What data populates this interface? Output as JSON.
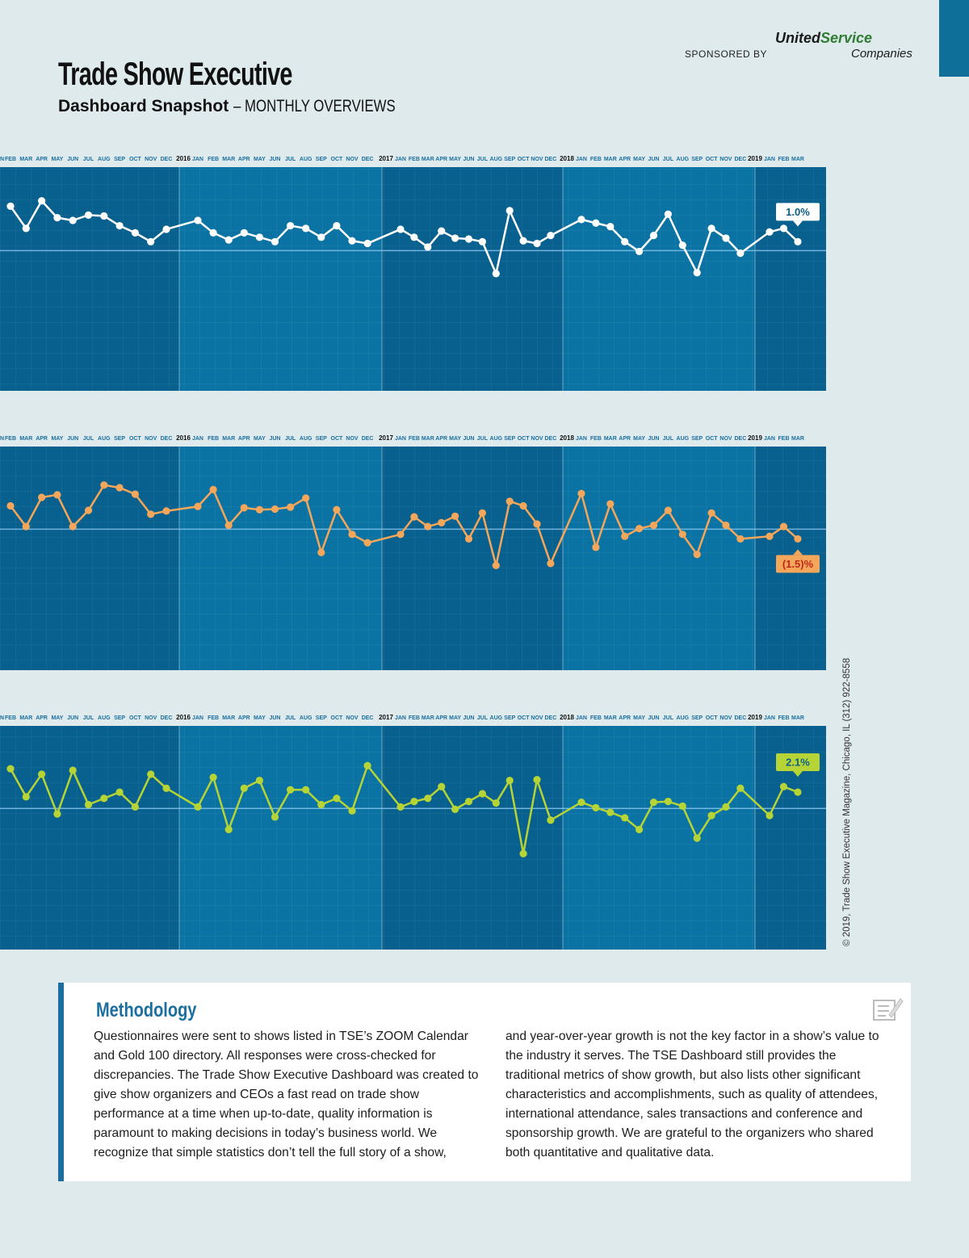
{
  "header": {
    "brand": "Trade Show Executive",
    "title": "Dashboard Snapshot",
    "subtitle": "– MONTHLY OVERVIEWS"
  },
  "sponsor": {
    "label": "SPONSORED BY",
    "name_1": "United",
    "name_2": "Service",
    "name_3": "Companies"
  },
  "chart_data": [
    {
      "type": "line",
      "first_label": "N",
      "year_labels": [
        "2016",
        "2017",
        "2018",
        "2019"
      ],
      "categories": [
        "FEB",
        "MAR",
        "APR",
        "MAY",
        "JUN",
        "JUL",
        "AUG",
        "SEP",
        "OCT",
        "NOV",
        "DEC",
        "JAN",
        "FEB",
        "MAR",
        "APR",
        "MAY",
        "JUN",
        "JUL",
        "AUG",
        "SEP",
        "OCT",
        "NOV",
        "DEC",
        "JAN",
        "FEB",
        "MAR",
        "APR",
        "MAY",
        "JUN",
        "JUL",
        "AUG",
        "SEP",
        "OCT",
        "NOV",
        "DEC",
        "JAN",
        "FEB",
        "MAR",
        "APR",
        "MAY",
        "JUN",
        "JUL",
        "AUG",
        "SEP",
        "OCT",
        "NOV",
        "DEC",
        "JAN",
        "FEB",
        "MAR"
      ],
      "color": "#ffffff",
      "ylim": [
        -15.8,
        9.4
      ],
      "values": [
        5.0,
        2.5,
        5.6,
        3.7,
        3.4,
        4.0,
        3.9,
        2.8,
        2.0,
        1.0,
        2.4,
        3.4,
        2.0,
        1.2,
        2.0,
        1.5,
        1.0,
        2.8,
        2.5,
        1.5,
        2.8,
        1.1,
        0.8,
        2.4,
        1.5,
        0.4,
        2.2,
        1.4,
        1.3,
        1.0,
        -2.6,
        4.5,
        1.1,
        0.8,
        1.7,
        3.5,
        3.1,
        2.7,
        1.0,
        -0.1,
        1.7,
        4.1,
        0.6,
        -2.5,
        2.5,
        1.4,
        -0.3,
        2.1,
        2.5,
        1.0
      ],
      "value_labels": [
        null,
        null,
        null,
        null,
        null,
        null,
        null,
        null,
        null,
        null,
        null,
        null,
        null,
        null,
        null,
        null,
        null,
        null,
        null,
        null,
        null,
        null,
        null,
        null,
        null,
        null,
        null,
        null,
        null,
        null,
        null,
        null,
        null,
        null,
        null,
        null,
        null,
        null,
        null,
        null,
        null,
        null,
        null,
        null,
        null,
        null,
        null,
        null,
        null,
        "1.0%"
      ]
    },
    {
      "type": "line",
      "first_label": "N",
      "year_labels": [
        "2016",
        "2017",
        "2018",
        "2019"
      ],
      "categories": [
        "FEB",
        "MAR",
        "APR",
        "MAY",
        "JUN",
        "JUL",
        "AUG",
        "SEP",
        "OCT",
        "NOV",
        "DEC",
        "JAN",
        "FEB",
        "MAR",
        "APR",
        "MAY",
        "JUN",
        "JUL",
        "AUG",
        "SEP",
        "OCT",
        "NOV",
        "DEC",
        "JAN",
        "FEB",
        "MAR",
        "APR",
        "MAY",
        "JUN",
        "JUL",
        "AUG",
        "SEP",
        "OCT",
        "NOV",
        "DEC",
        "JAN",
        "FEB",
        "MAR",
        "APR",
        "MAY",
        "JUN",
        "JUL",
        "AUG",
        "SEP",
        "OCT",
        "NOV",
        "DEC",
        "JAN",
        "FEB",
        "MAR"
      ],
      "color": "#f4a65a",
      "ylim": [
        -21.75,
        12.75
      ],
      "values": [
        3.6,
        0.4,
        4.9,
        5.3,
        0.4,
        2.9,
        6.8,
        6.4,
        5.4,
        2.3,
        2.8,
        3.5,
        6.1,
        0.6,
        3.3,
        3.0,
        3.1,
        3.4,
        4.8,
        -3.6,
        3.0,
        -0.8,
        -2.1,
        -0.8,
        1.9,
        0.4,
        1.0,
        2.0,
        -1.5,
        2.5,
        -5.6,
        4.3,
        3.6,
        0.8,
        -5.3,
        5.5,
        -2.8,
        3.9,
        -1.1,
        0.1,
        0.6,
        2.9,
        -0.8,
        -3.9,
        2.5,
        0.6,
        -1.5,
        -1.1,
        0.4,
        -1.5
      ],
      "value_labels": [
        null,
        null,
        null,
        null,
        null,
        null,
        null,
        null,
        null,
        null,
        null,
        null,
        null,
        null,
        null,
        null,
        null,
        null,
        null,
        null,
        null,
        null,
        null,
        null,
        null,
        null,
        null,
        null,
        null,
        null,
        null,
        null,
        null,
        null,
        null,
        null,
        null,
        null,
        null,
        null,
        null,
        null,
        null,
        null,
        null,
        null,
        null,
        null,
        null,
        "(1.5)%"
      ]
    },
    {
      "type": "line",
      "first_label": "N",
      "year_labels": [
        "2016",
        "2017",
        "2018",
        "2019"
      ],
      "categories": [
        "FEB",
        "MAR",
        "APR",
        "MAY",
        "JUN",
        "JUL",
        "AUG",
        "SEP",
        "OCT",
        "NOV",
        "DEC",
        "JAN",
        "FEB",
        "MAR",
        "APR",
        "MAY",
        "JUN",
        "JUL",
        "AUG",
        "SEP",
        "OCT",
        "NOV",
        "DEC",
        "JAN",
        "FEB",
        "MAR",
        "APR",
        "MAY",
        "JUN",
        "JUL",
        "AUG",
        "SEP",
        "OCT",
        "NOV",
        "DEC",
        "JAN",
        "FEB",
        "MAR",
        "APR",
        "MAY",
        "JUN",
        "JUL",
        "AUG",
        "SEP",
        "OCT",
        "NOV",
        "DEC",
        "JAN",
        "FEB",
        "MAR"
      ],
      "color": "#b6d435",
      "ylim": [
        -18.1,
        10.6
      ],
      "values": [
        5.1,
        1.5,
        4.4,
        -0.7,
        4.9,
        0.5,
        1.3,
        2.1,
        0.2,
        4.4,
        2.6,
        0.2,
        4.0,
        -2.7,
        2.6,
        3.6,
        -1.1,
        2.4,
        2.4,
        0.5,
        1.3,
        -0.3,
        5.5,
        0.2,
        0.9,
        1.3,
        2.8,
        -0.1,
        0.9,
        1.9,
        0.7,
        3.6,
        -5.8,
        3.7,
        -1.5,
        0.8,
        0.1,
        -0.5,
        -1.2,
        -2.7,
        0.8,
        0.9,
        0.3,
        -3.8,
        -0.9,
        0.2,
        2.6,
        -0.9,
        2.8,
        2.1
      ],
      "value_labels": [
        null,
        null,
        null,
        null,
        null,
        null,
        null,
        null,
        null,
        null,
        null,
        null,
        null,
        null,
        null,
        null,
        null,
        null,
        null,
        null,
        null,
        null,
        null,
        null,
        null,
        null,
        null,
        null,
        null,
        null,
        null,
        null,
        null,
        null,
        null,
        null,
        null,
        null,
        null,
        null,
        null,
        null,
        null,
        null,
        null,
        null,
        null,
        null,
        null,
        "2.1%"
      ]
    }
  ],
  "copyright": "© 2019, Trade Show Executive Magazine, Chicago, IL (312) 922-8558",
  "methodology": {
    "title": "Methodology",
    "columns": [
      "Questionnaires were sent to shows listed in TSE’s ZOOM Calendar and Gold 100 directory. All responses were cross-checked for discrepancies. The Trade Show Executive Dashboard was created to give show organizers and CEOs a fast read on trade show performance at a time when up-to-date, quality information is paramount to making decisions in today’s business world. We recognize that simple statistics don’t tell the full story of a show,",
      "and year-over-year growth is not the key factor in a show’s value to the industry it serves. The TSE Dashboard still provides the traditional metrics of show growth, but also lists other significant characteristics and accomplishments, such as quality of attendees, international attendance, sales transactions and conference and sponsorship growth. We are grateful to the organizers who shared both quantitative and qualitative data."
    ]
  }
}
